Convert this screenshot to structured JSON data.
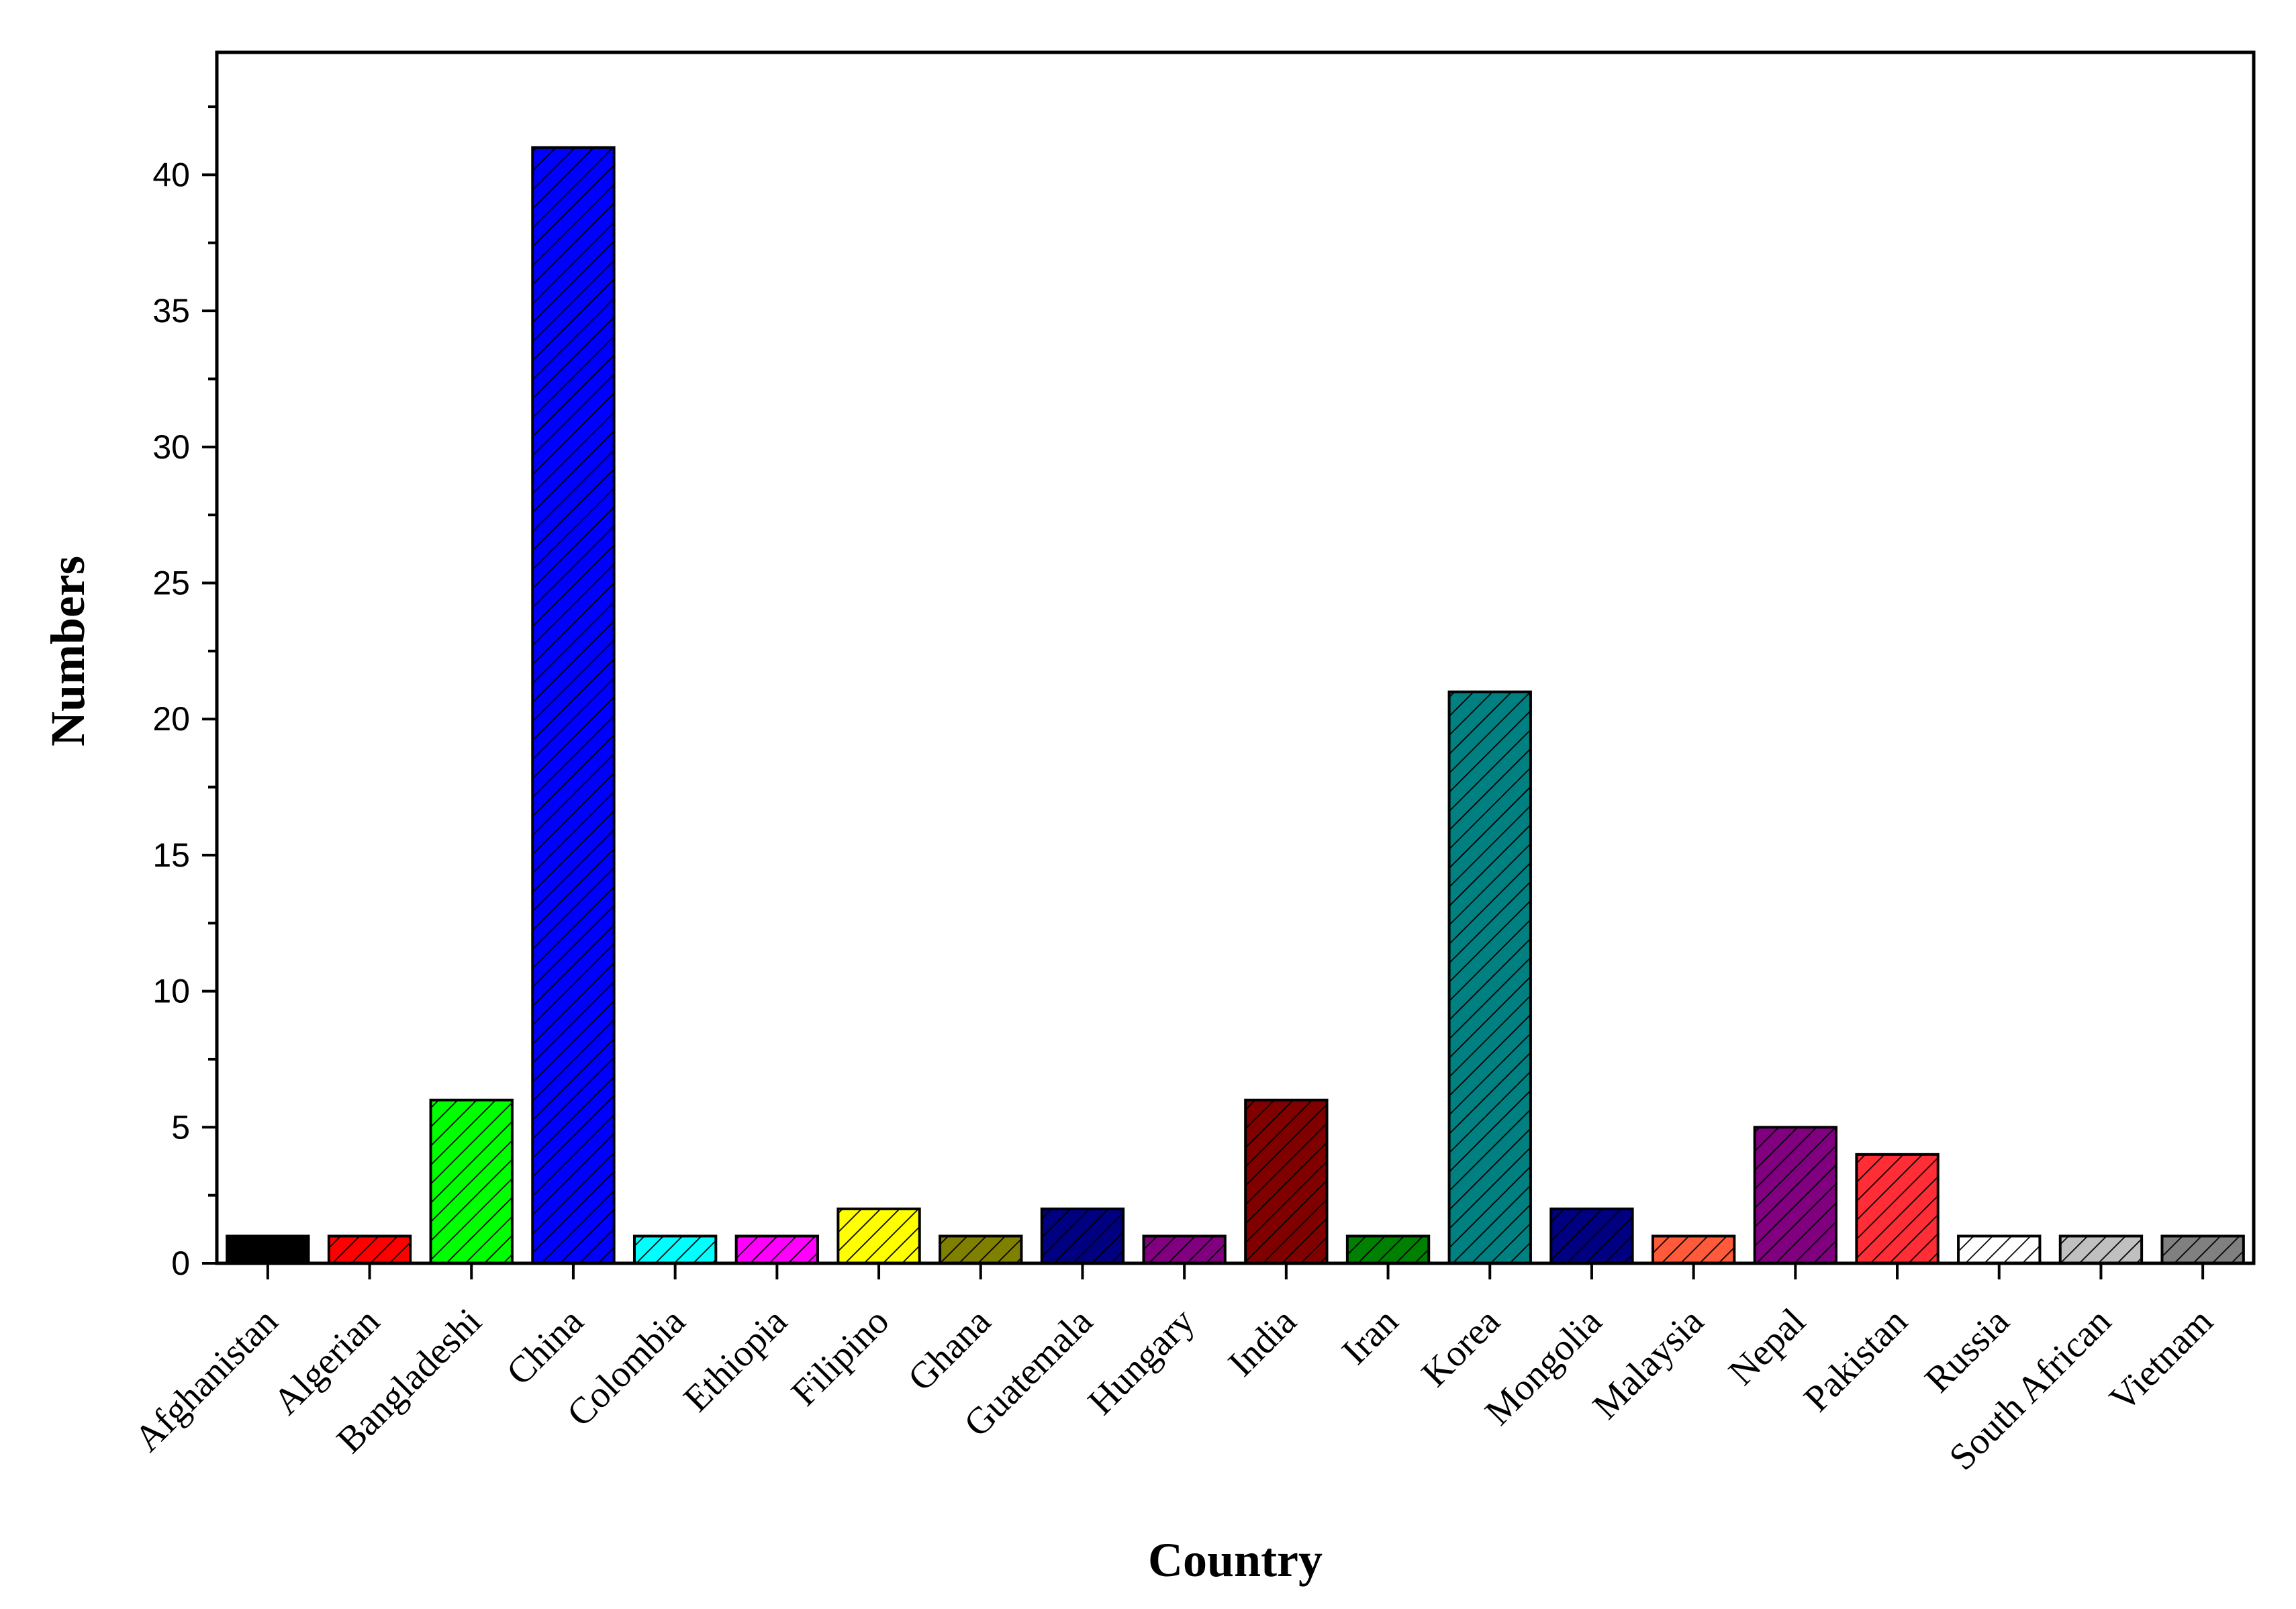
{
  "chart_data": {
    "type": "bar",
    "title": "",
    "xlabel": "Country",
    "ylabel": "Numbers",
    "ylim": [
      0,
      44.5
    ],
    "yticks": [
      "0",
      "5",
      "10",
      "15",
      "20",
      "25",
      "30",
      "35",
      "40"
    ],
    "grid": false,
    "legend": "none",
    "hatch": "diagonal",
    "categories": [
      "Afghanistan",
      "Algerian",
      "Bangladeshi",
      "China",
      "Colombia",
      "Ethiopia",
      "Filipino",
      "Ghana",
      "Guatemala",
      "Hungary",
      "India",
      "Iran",
      "Korea",
      "Mongolia",
      "Malaysia",
      "Nepal",
      "Pakistan",
      "Russia",
      "South African",
      "Vietnam"
    ],
    "values": [
      1,
      1,
      6,
      41,
      1,
      1,
      2,
      1,
      2,
      1,
      6,
      1,
      21,
      2,
      1,
      5,
      4,
      1,
      1,
      1
    ],
    "colors": [
      "#000000",
      "#ff0000",
      "#00ff00",
      "#0000ff",
      "#00ffff",
      "#ff00ff",
      "#ffff00",
      "#808000",
      "#000080",
      "#800080",
      "#800000",
      "#008000",
      "#008080",
      "#000080",
      "#ff5a3a",
      "#800080",
      "#ff2d36",
      "#ffffff",
      "#c0c0c0",
      "#808080"
    ]
  }
}
